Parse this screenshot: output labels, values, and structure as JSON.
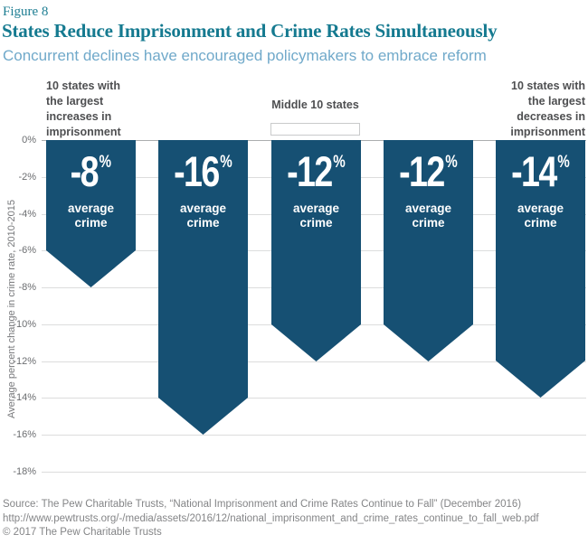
{
  "header": {
    "figure_label": "Figure 8",
    "title": "States Reduce Imprisonment and Crime Rates Simultaneously",
    "subtitle": "Concurrent declines have encouraged policymakers to embrace reform"
  },
  "groups": {
    "left": [
      "10 states with",
      "the largest",
      "increases in",
      "imprisonment"
    ],
    "middle": "Middle 10 states",
    "right": [
      "10 states with",
      "the largest",
      "decreases in",
      "imprisonment"
    ]
  },
  "chart_data": {
    "type": "bar",
    "categories": [
      "10 states with the largest increases in imprisonment",
      "",
      "Middle 10 states",
      "",
      "10 states with the largest decreases in imprisonment"
    ],
    "values": [
      -8,
      -16,
      -12,
      -12,
      -14
    ],
    "value_labels": [
      "-8",
      "-16",
      "-12",
      "-12",
      "-14"
    ],
    "unit": "%",
    "bar_sublabel": "average crime",
    "title": "States Reduce Imprisonment and Crime Rates Simultaneously",
    "xlabel": "",
    "ylabel": "Average percent change in crime rate, 2010-2015",
    "ylim": [
      -18,
      0
    ],
    "yticks": [
      "0%",
      "-2%",
      "-4%",
      "-6%",
      "-8%",
      "-10%",
      "-12%",
      "-14%",
      "-16%",
      "-18%"
    ],
    "grid": true,
    "legend_position": "none",
    "bar_color": "#165073"
  },
  "footer": {
    "source": "Source: The Pew Charitable Trusts, “National Imprisonment and Crime Rates Continue to Fall” (December 2016) http://www.pewtrusts.org/-/media/assets/2016/12/national_imprisonment_and_crime_rates_continue_to_fall_web.pdf",
    "copyright": "© 2017 The Pew Charitable Trusts"
  }
}
